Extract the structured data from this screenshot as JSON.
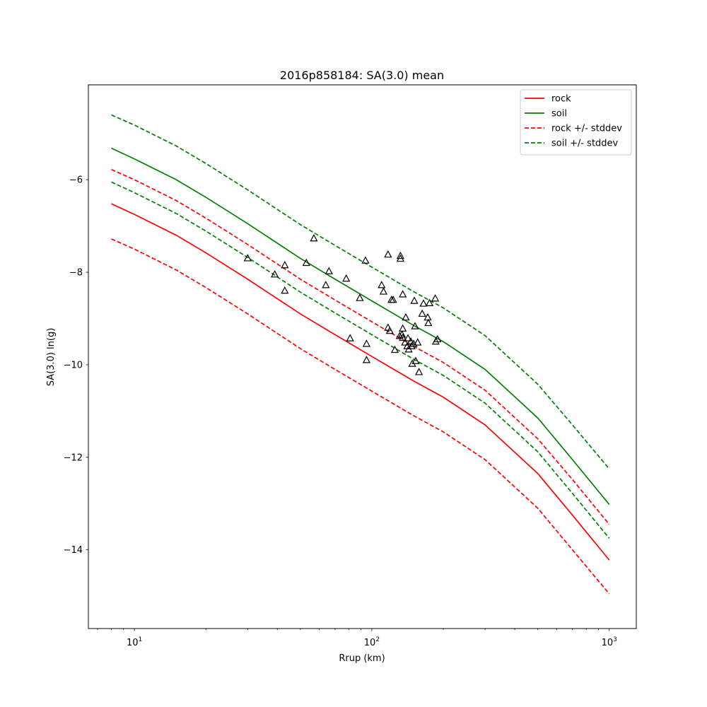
{
  "chart_data": {
    "type": "line",
    "title": "2016p858184: SA(3.0) mean",
    "xlabel": "Rrup (km)",
    "ylabel": "SA(3.0) ln(g)",
    "xscale": "log",
    "xlim": [
      6.4,
      1300
    ],
    "ylim": [
      -15.7,
      -3.95
    ],
    "x_ticks": [
      {
        "value": 10,
        "base": "10",
        "exp": "1"
      },
      {
        "value": 100,
        "base": "10",
        "exp": "2"
      },
      {
        "value": 1000,
        "base": "10",
        "exp": "3"
      }
    ],
    "y_ticks": [
      {
        "value": -6,
        "label": "−6"
      },
      {
        "value": -8,
        "label": "−8"
      },
      {
        "value": -10,
        "label": "−10"
      },
      {
        "value": -12,
        "label": "−12"
      },
      {
        "value": -14,
        "label": "−14"
      }
    ],
    "grid": false,
    "legend_position": "top-right",
    "x": [
      8,
      10,
      15,
      20,
      30,
      50,
      70,
      100,
      150,
      200,
      300,
      500,
      700,
      1000
    ],
    "series": [
      {
        "name": "rock",
        "color": "#ff0000",
        "dash": "solid",
        "values": [
          -6.52,
          -6.75,
          -7.2,
          -7.58,
          -8.15,
          -8.9,
          -9.35,
          -9.82,
          -10.35,
          -10.7,
          -11.3,
          -12.35,
          -13.25,
          -14.22
        ]
      },
      {
        "name": "soil",
        "color": "#008000",
        "dash": "solid",
        "values": [
          -5.32,
          -5.55,
          -6.0,
          -6.38,
          -6.95,
          -7.7,
          -8.15,
          -8.62,
          -9.15,
          -9.5,
          -10.1,
          -11.15,
          -12.05,
          -13.02
        ]
      },
      {
        "name": "rock +/- stddev",
        "color": "#ff0000",
        "dash": "dashed",
        "values": [
          -5.78,
          -6.0,
          -6.45,
          -6.83,
          -7.4,
          -8.15,
          -8.6,
          -9.07,
          -9.6,
          -9.95,
          -10.55,
          -11.6,
          -12.48,
          -13.45
        ]
      },
      {
        "name": "",
        "color": "#ff0000",
        "dash": "dashed",
        "legend": false,
        "values": [
          -7.28,
          -7.5,
          -7.95,
          -8.33,
          -8.9,
          -9.65,
          -10.1,
          -10.57,
          -11.1,
          -11.45,
          -12.05,
          -13.1,
          -14.0,
          -14.95
        ]
      },
      {
        "name": "soil +/- stddev",
        "color": "#008000",
        "dash": "dashed",
        "values": [
          -4.6,
          -4.82,
          -5.27,
          -5.65,
          -6.22,
          -6.97,
          -7.42,
          -7.89,
          -8.42,
          -8.77,
          -9.37,
          -10.42,
          -11.3,
          -12.25
        ]
      },
      {
        "name": "",
        "color": "#008000",
        "dash": "dashed",
        "legend": false,
        "values": [
          -6.05,
          -6.28,
          -6.73,
          -7.11,
          -7.68,
          -8.43,
          -8.88,
          -9.35,
          -9.88,
          -10.23,
          -10.83,
          -11.88,
          -12.78,
          -13.75
        ]
      }
    ],
    "observations": {
      "marker": "triangle",
      "color": "#000000",
      "points": [
        [
          30,
          -7.7
        ],
        [
          39,
          -8.05
        ],
        [
          43,
          -7.85
        ],
        [
          43,
          -8.4
        ],
        [
          53,
          -7.8
        ],
        [
          57,
          -7.27
        ],
        [
          64,
          -8.28
        ],
        [
          66,
          -7.98
        ],
        [
          78,
          -8.14
        ],
        [
          81,
          -9.43
        ],
        [
          89,
          -8.56
        ],
        [
          94,
          -7.75
        ],
        [
          95,
          -9.55
        ],
        [
          95,
          -9.9
        ],
        [
          110,
          -8.28
        ],
        [
          112,
          -8.42
        ],
        [
          117,
          -7.62
        ],
        [
          117,
          -9.2
        ],
        [
          119,
          -9.27
        ],
        [
          121,
          -8.6
        ],
        [
          123,
          -8.6
        ],
        [
          125,
          -9.68
        ],
        [
          131,
          -9.38
        ],
        [
          132,
          -7.65
        ],
        [
          132,
          -7.71
        ],
        [
          134,
          -9.35
        ],
        [
          135,
          -9.22
        ],
        [
          135,
          -9.42
        ],
        [
          135,
          -8.48
        ],
        [
          138,
          -9.52
        ],
        [
          139,
          -8.98
        ],
        [
          141,
          -9.6
        ],
        [
          142,
          -9.43
        ],
        [
          143,
          -9.67
        ],
        [
          146,
          -9.5
        ],
        [
          147,
          -9.6
        ],
        [
          148,
          -9.98
        ],
        [
          150,
          -9.55
        ],
        [
          151,
          -8.62
        ],
        [
          152,
          -9.17
        ],
        [
          153,
          -9.92
        ],
        [
          156,
          -9.52
        ],
        [
          158,
          -10.16
        ],
        [
          163,
          -8.9
        ],
        [
          165,
          -8.68
        ],
        [
          172,
          -8.98
        ],
        [
          173,
          -9.1
        ],
        [
          175,
          -8.67
        ],
        [
          185,
          -8.57
        ],
        [
          186,
          -9.5
        ],
        [
          189,
          -9.45
        ]
      ]
    }
  }
}
